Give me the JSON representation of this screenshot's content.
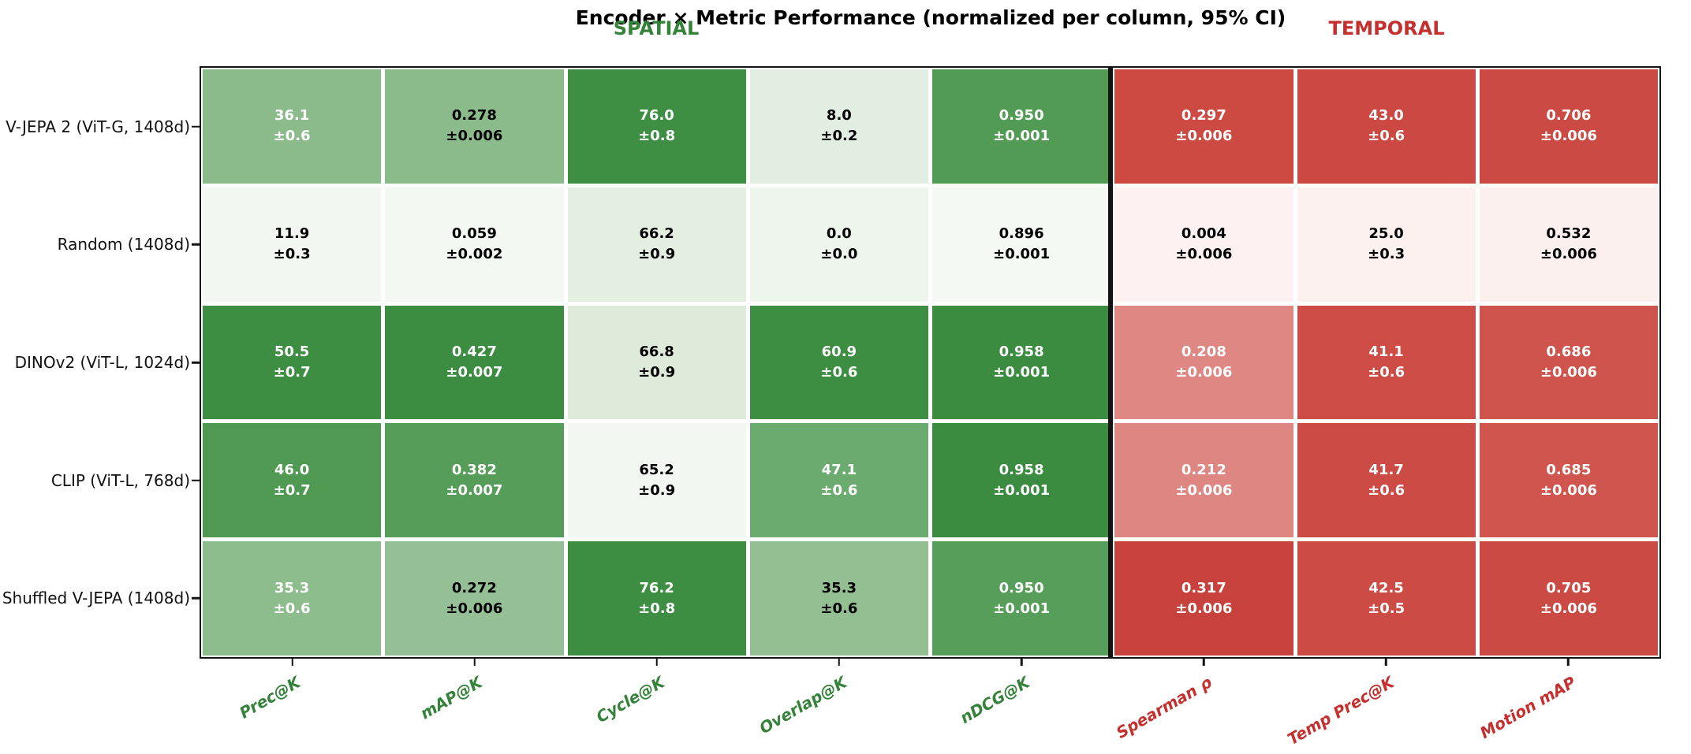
{
  "title": "Encoder × Metric Performance (normalized per column, 95% CI)",
  "groups": [
    {
      "label": "SPATIAL",
      "color": "#35823a"
    },
    {
      "label": "TEMPORAL",
      "color": "#c5302e"
    }
  ],
  "chart_data": {
    "type": "heatmap",
    "title": "Encoder × Metric Performance (normalized per column, 95% CI)",
    "normalization": "per column",
    "ci_level": "95%",
    "rows": [
      "V-JEPA 2 (ViT-G, 1408d)",
      "Random (1408d)",
      "DINOv2 (ViT-L, 1024d)",
      "CLIP (ViT-L, 768d)",
      "Shuffled V-JEPA (1408d)"
    ],
    "columns": [
      {
        "label": "Prec@K",
        "group": "SPATIAL",
        "color": "#35823a"
      },
      {
        "label": "mAP@K",
        "group": "SPATIAL",
        "color": "#35823a"
      },
      {
        "label": "Cycle@K",
        "group": "SPATIAL",
        "color": "#35823a"
      },
      {
        "label": "Overlap@K",
        "group": "SPATIAL",
        "color": "#35823a"
      },
      {
        "label": "nDCG@K",
        "group": "SPATIAL",
        "color": "#35823a"
      },
      {
        "label": "Spearman ρ",
        "group": "TEMPORAL",
        "color": "#c5302e"
      },
      {
        "label": "Temp Prec@K",
        "group": "TEMPORAL",
        "color": "#c5302e"
      },
      {
        "label": "Motion mAP",
        "group": "TEMPORAL",
        "color": "#c5302e"
      }
    ],
    "cells": [
      [
        {
          "value": "36.1",
          "ci": "±0.6",
          "bg": "#8bba8b",
          "fg": "#ffffff"
        },
        {
          "value": "0.278",
          "ci": "±0.006",
          "bg": "#8bba8b",
          "fg": "#000000"
        },
        {
          "value": "76.0",
          "ci": "±0.8",
          "bg": "#3e8e44",
          "fg": "#ffffff"
        },
        {
          "value": "8.0",
          "ci": "±0.2",
          "bg": "#e2eee2",
          "fg": "#000000"
        },
        {
          "value": "0.950",
          "ci": "±0.001",
          "bg": "#519b55",
          "fg": "#ffffff"
        },
        {
          "value": "0.297",
          "ci": "±0.006",
          "bg": "#cd4a43",
          "fg": "#ffffff"
        },
        {
          "value": "43.0",
          "ci": "±0.6",
          "bg": "#cb4942",
          "fg": "#ffffff"
        },
        {
          "value": "0.706",
          "ci": "±0.006",
          "bg": "#cb4a43",
          "fg": "#ffffff"
        }
      ],
      [
        {
          "value": "11.9",
          "ci": "±0.3",
          "bg": "#f2f8f1",
          "fg": "#000000"
        },
        {
          "value": "0.059",
          "ci": "±0.002",
          "bg": "#f3f8f2",
          "fg": "#000000"
        },
        {
          "value": "66.2",
          "ci": "±0.9",
          "bg": "#e4efe2",
          "fg": "#000000"
        },
        {
          "value": "0.0",
          "ci": "±0.0",
          "bg": "#eef5ed",
          "fg": "#000000"
        },
        {
          "value": "0.896",
          "ci": "±0.001",
          "bg": "#f4f9f3",
          "fg": "#000000"
        },
        {
          "value": "0.004",
          "ci": "±0.006",
          "bg": "#fdf2f1",
          "fg": "#000000"
        },
        {
          "value": "25.0",
          "ci": "±0.3",
          "bg": "#fdf1f0",
          "fg": "#000000"
        },
        {
          "value": "0.532",
          "ci": "±0.006",
          "bg": "#fcf0ef",
          "fg": "#000000"
        }
      ],
      [
        {
          "value": "50.5",
          "ci": "±0.7",
          "bg": "#3d8d43",
          "fg": "#ffffff"
        },
        {
          "value": "0.427",
          "ci": "±0.007",
          "bg": "#3c8c42",
          "fg": "#ffffff"
        },
        {
          "value": "66.8",
          "ci": "±0.9",
          "bg": "#deebda",
          "fg": "#000000"
        },
        {
          "value": "60.9",
          "ci": "±0.6",
          "bg": "#3d8d43",
          "fg": "#ffffff"
        },
        {
          "value": "0.958",
          "ci": "±0.001",
          "bg": "#3b8b41",
          "fg": "#ffffff"
        },
        {
          "value": "0.208",
          "ci": "±0.006",
          "bg": "#de8783",
          "fg": "#ffffff"
        },
        {
          "value": "41.1",
          "ci": "±0.6",
          "bg": "#cd4d46",
          "fg": "#ffffff"
        },
        {
          "value": "0.686",
          "ci": "±0.006",
          "bg": "#cf544d",
          "fg": "#ffffff"
        }
      ],
      [
        {
          "value": "46.0",
          "ci": "±0.7",
          "bg": "#4f9952",
          "fg": "#ffffff"
        },
        {
          "value": "0.382",
          "ci": "±0.007",
          "bg": "#569d59",
          "fg": "#ffffff"
        },
        {
          "value": "65.2",
          "ci": "±0.9",
          "bg": "#f2f8f1",
          "fg": "#000000"
        },
        {
          "value": "47.1",
          "ci": "±0.6",
          "bg": "#6cab6f",
          "fg": "#ffffff"
        },
        {
          "value": "0.958",
          "ci": "±0.001",
          "bg": "#3b8b41",
          "fg": "#ffffff"
        },
        {
          "value": "0.212",
          "ci": "±0.006",
          "bg": "#dd8682",
          "fg": "#ffffff"
        },
        {
          "value": "41.7",
          "ci": "±0.6",
          "bg": "#cc4b45",
          "fg": "#ffffff"
        },
        {
          "value": "0.685",
          "ci": "±0.006",
          "bg": "#cf554e",
          "fg": "#ffffff"
        }
      ],
      [
        {
          "value": "35.3",
          "ci": "±0.6",
          "bg": "#8dbc8d",
          "fg": "#ffffff"
        },
        {
          "value": "0.272",
          "ci": "±0.006",
          "bg": "#95c095",
          "fg": "#000000"
        },
        {
          "value": "76.2",
          "ci": "±0.8",
          "bg": "#3d8d43",
          "fg": "#ffffff"
        },
        {
          "value": "35.3",
          "ci": "±0.6",
          "bg": "#93bf93",
          "fg": "#000000"
        },
        {
          "value": "0.950",
          "ci": "±0.001",
          "bg": "#579e5a",
          "fg": "#ffffff"
        },
        {
          "value": "0.317",
          "ci": "±0.006",
          "bg": "#c7423c",
          "fg": "#ffffff"
        },
        {
          "value": "42.5",
          "ci": "±0.5",
          "bg": "#cc4b45",
          "fg": "#ffffff"
        },
        {
          "value": "0.705",
          "ci": "±0.006",
          "bg": "#cb4a44",
          "fg": "#ffffff"
        }
      ]
    ]
  },
  "layout_hints": {
    "grid": "off",
    "legend": "none",
    "colormap_spatial": "white-to-green",
    "colormap_temporal": "white-to-red"
  }
}
